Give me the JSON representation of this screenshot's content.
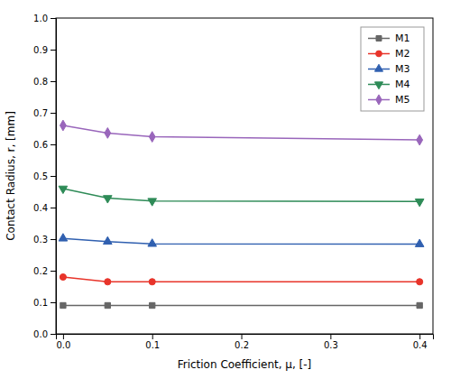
{
  "chart_data": {
    "type": "line",
    "x": [
      0.0,
      0.05,
      0.1,
      0.4
    ],
    "series": [
      {
        "name": "M1",
        "color": "#666666",
        "marker": "square",
        "values": [
          0.09,
          0.09,
          0.09,
          0.09
        ]
      },
      {
        "name": "M2",
        "color": "#e8342a",
        "marker": "circle",
        "values": [
          0.18,
          0.165,
          0.165,
          0.165
        ]
      },
      {
        "name": "M3",
        "color": "#3060b0",
        "marker": "triangle-up",
        "values": [
          0.302,
          0.292,
          0.285,
          0.284
        ]
      },
      {
        "name": "M4",
        "color": "#2e8b57",
        "marker": "triangle-down",
        "values": [
          0.46,
          0.43,
          0.421,
          0.419
        ]
      },
      {
        "name": "M5",
        "color": "#9966bb",
        "marker": "diamond",
        "values": [
          0.66,
          0.636,
          0.624,
          0.614
        ]
      }
    ],
    "xlabel": "Friction Coefficient, μ, [-]",
    "ylabel": "Contact Radius, r, [mm]",
    "xlim": [
      -0.008,
      0.415
    ],
    "ylim": [
      0.0,
      1.0
    ],
    "xticks": [
      {
        "value": 0.0,
        "label": "0.0"
      },
      0.1,
      0.2,
      0.3,
      0.4
    ],
    "yticks": [
      {
        "value": 0.0,
        "label": "0.0"
      },
      0.1,
      0.2,
      0.3,
      0.4,
      0.5,
      0.6,
      0.7,
      0.8,
      0.9,
      {
        "value": 1.0,
        "label": "1.0"
      }
    ],
    "legend": "upper right",
    "grid": false
  }
}
